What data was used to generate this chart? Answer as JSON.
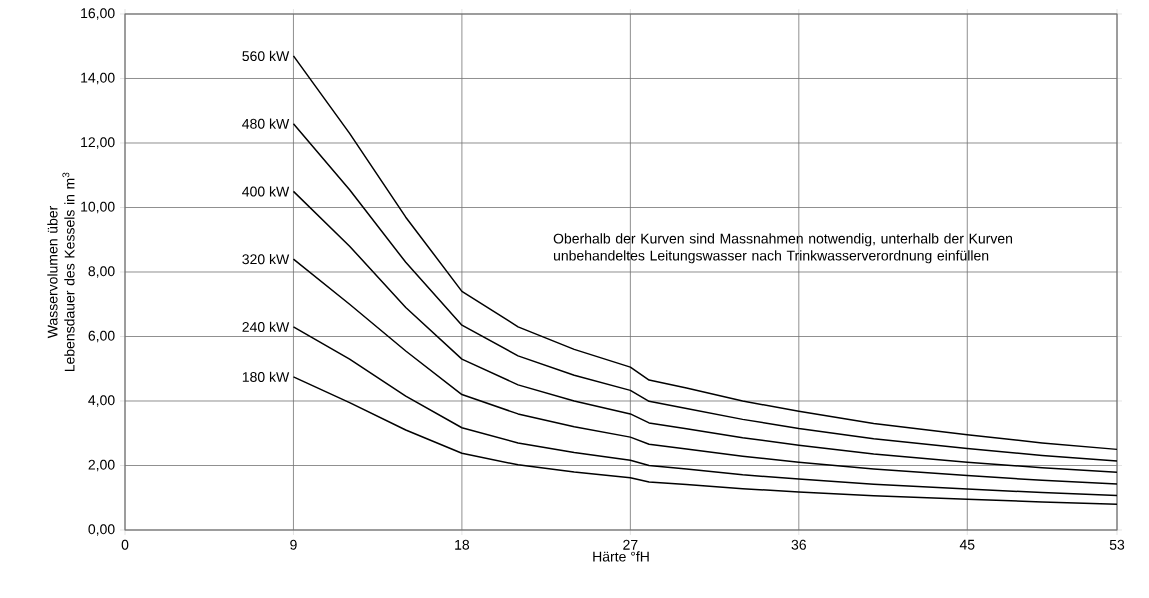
{
  "chart_data": {
    "type": "line",
    "xlabel": "Härte °fH",
    "ylabel": "Wasservolumen über Lebensdauer des Kessels in m$^{3}$",
    "annotations": [
      "Oberhalb der Kurven sind Massnahmen notwendig, unterhalb der Kurven unbehandeltes Leitungswasser nach Trinkwasserverordnung einfüllen"
    ],
    "x": [
      9,
      12,
      15,
      18,
      21,
      24,
      27,
      28,
      30,
      33,
      36,
      40,
      45,
      49,
      53
    ],
    "series": [
      {
        "name": "560 kW",
        "color": "#000000",
        "values": [
          14.7,
          12.3,
          9.7,
          7.4,
          6.3,
          5.6,
          5.05,
          4.65,
          4.4,
          4.0,
          3.68,
          3.3,
          2.95,
          2.7,
          2.5
        ]
      },
      {
        "name": "480 kW",
        "color": "#000000",
        "values": [
          12.6,
          10.55,
          8.3,
          6.35,
          5.4,
          4.8,
          4.33,
          3.99,
          3.77,
          3.43,
          3.15,
          2.83,
          2.53,
          2.31,
          2.14
        ]
      },
      {
        "name": "400 kW",
        "color": "#000000",
        "values": [
          10.5,
          8.8,
          6.9,
          5.3,
          4.5,
          4.0,
          3.6,
          3.32,
          3.14,
          2.86,
          2.63,
          2.36,
          2.1,
          1.93,
          1.79
        ]
      },
      {
        "name": "320 kW",
        "color": "#000000",
        "values": [
          8.4,
          7.0,
          5.55,
          4.2,
          3.6,
          3.2,
          2.88,
          2.66,
          2.51,
          2.29,
          2.1,
          1.89,
          1.69,
          1.54,
          1.43
        ]
      },
      {
        "name": "240 kW",
        "color": "#000000",
        "values": [
          6.3,
          5.3,
          4.15,
          3.17,
          2.7,
          2.4,
          2.16,
          2.0,
          1.89,
          1.71,
          1.58,
          1.42,
          1.27,
          1.16,
          1.07
        ]
      },
      {
        "name": "180 kW",
        "color": "#000000",
        "values": [
          4.75,
          3.95,
          3.1,
          2.38,
          2.02,
          1.8,
          1.62,
          1.49,
          1.41,
          1.28,
          1.18,
          1.06,
          0.95,
          0.87,
          0.8
        ]
      }
    ],
    "xlim": [
      0,
      53
    ],
    "xticks": [
      0,
      9,
      18,
      27,
      36,
      45,
      53
    ],
    "ylim": [
      0,
      16
    ],
    "yticks": [
      {
        "value": 0,
        "label": "0,00"
      },
      {
        "value": 2,
        "label": "2,00"
      },
      {
        "value": 4,
        "label": "4,00"
      },
      {
        "value": 6,
        "label": "6,00"
      },
      {
        "value": 8,
        "label": "8,00"
      },
      {
        "value": 10,
        "label": "10,00"
      },
      {
        "value": 12,
        "label": "12,00"
      },
      {
        "value": 14,
        "label": "14,00"
      },
      {
        "value": 16,
        "label": "16,00"
      }
    ],
    "grid": true,
    "legend": false,
    "marker": "none",
    "line_style": "solid"
  }
}
